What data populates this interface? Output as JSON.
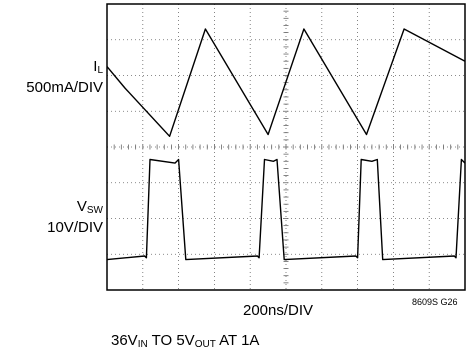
{
  "channel_labels": {
    "il": {
      "main": "I",
      "sub": "L",
      "scale": "500mA/DIV"
    },
    "vsw": {
      "main": "V",
      "sub": "SW",
      "scale": "10V/DIV"
    }
  },
  "time_scale": "200ns/DIV",
  "figure_code": "8609S G26",
  "caption": {
    "p1": "36V",
    "s1": "IN",
    "p2": " TO 5V",
    "s2": "OUT",
    "p3": " AT 1A"
  },
  "colors": {
    "trace": "#000000",
    "grid": "#666666",
    "frame": "#000000"
  },
  "chart_data": {
    "type": "line",
    "grid": true,
    "x_divisions": 10,
    "y_divisions": 8,
    "x_unit": "ns",
    "x_per_div": 200,
    "series": [
      {
        "channel": "IL",
        "unit": "div",
        "x": [
          0,
          0.5,
          1.75,
          2.75,
          4.5,
          5.5,
          7.25,
          8.3,
          10.0
        ],
        "y": [
          6.25,
          5.65,
          4.3,
          7.3,
          4.35,
          7.3,
          4.35,
          7.3,
          6.4
        ]
      },
      {
        "channel": "VSW",
        "unit": "div",
        "x": [
          0,
          1.05,
          1.1,
          1.2,
          1.9,
          2.0,
          2.2,
          4.2,
          4.25,
          4.4,
          4.65,
          4.75,
          4.95,
          6.95,
          7.0,
          7.1,
          7.4,
          7.55,
          7.7,
          9.7,
          9.75,
          9.9,
          10.0
        ],
        "y": [
          0.85,
          0.95,
          0.9,
          3.65,
          3.55,
          3.65,
          0.85,
          0.95,
          0.9,
          3.65,
          3.6,
          3.65,
          0.85,
          0.95,
          0.9,
          3.65,
          3.6,
          3.65,
          0.85,
          0.95,
          0.9,
          3.65,
          3.55
        ]
      }
    ]
  }
}
